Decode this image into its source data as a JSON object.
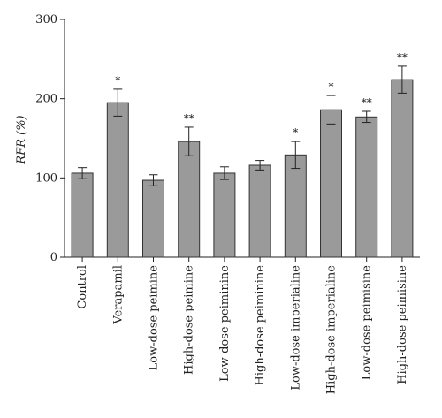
{
  "chart_data": {
    "type": "bar",
    "ylabel": "RFR (%)",
    "ylim": [
      0,
      300
    ],
    "yticks": [
      0,
      100,
      200,
      300
    ],
    "grid": false,
    "categories": [
      "Control",
      "Verapamil",
      "Low-dose peimine",
      "High-dose peimine",
      "Low-dose peiminine",
      "High-dose peiminine",
      "Low-dose imperialine",
      "High-dose imperialine",
      "Low-dose peimisine",
      "High-dose peimisine"
    ],
    "values": [
      106,
      195,
      97,
      146,
      106,
      116,
      129,
      186,
      177,
      224
    ],
    "errors": [
      7,
      17,
      7,
      18,
      8,
      6,
      17,
      18,
      7,
      17
    ],
    "significance": [
      "",
      "*",
      "",
      "**",
      "",
      "",
      "*",
      "*",
      "**",
      "**"
    ],
    "bar_color": "#9a9a9a",
    "bar_edge_color": "#333333"
  }
}
